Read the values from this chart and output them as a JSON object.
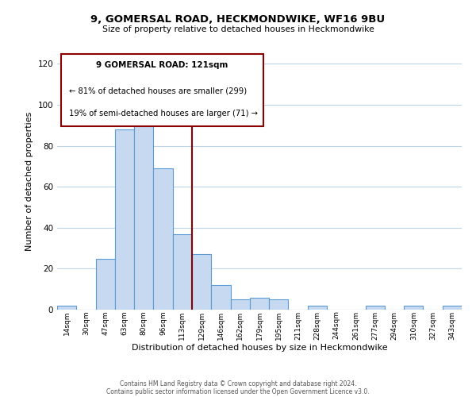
{
  "title": "9, GOMERSAL ROAD, HECKMONDWIKE, WF16 9BU",
  "subtitle": "Size of property relative to detached houses in Heckmondwike",
  "xlabel": "Distribution of detached houses by size in Heckmondwike",
  "ylabel": "Number of detached properties",
  "bin_labels": [
    "14sqm",
    "30sqm",
    "47sqm",
    "63sqm",
    "80sqm",
    "96sqm",
    "113sqm",
    "129sqm",
    "146sqm",
    "162sqm",
    "179sqm",
    "195sqm",
    "211sqm",
    "228sqm",
    "244sqm",
    "261sqm",
    "277sqm",
    "294sqm",
    "310sqm",
    "327sqm",
    "343sqm"
  ],
  "bar_values": [
    2,
    0,
    25,
    88,
    90,
    69,
    37,
    27,
    12,
    5,
    6,
    5,
    0,
    2,
    0,
    0,
    2,
    0,
    2,
    0,
    2
  ],
  "bar_color": "#c6d9f0",
  "bar_edge_color": "#5b9bd5",
  "ylim": [
    0,
    125
  ],
  "yticks": [
    0,
    20,
    40,
    60,
    80,
    100,
    120
  ],
  "property_line_x": 6.5,
  "property_line_color": "#8b0000",
  "annotation_title": "9 GOMERSAL ROAD: 121sqm",
  "annotation_line1": "← 81% of detached houses are smaller (299)",
  "annotation_line2": "19% of semi-detached houses are larger (71) →",
  "footer_line1": "Contains HM Land Registry data © Crown copyright and database right 2024.",
  "footer_line2": "Contains public sector information licensed under the Open Government Licence v3.0.",
  "background_color": "#ffffff",
  "grid_color": "#c0d4e8"
}
